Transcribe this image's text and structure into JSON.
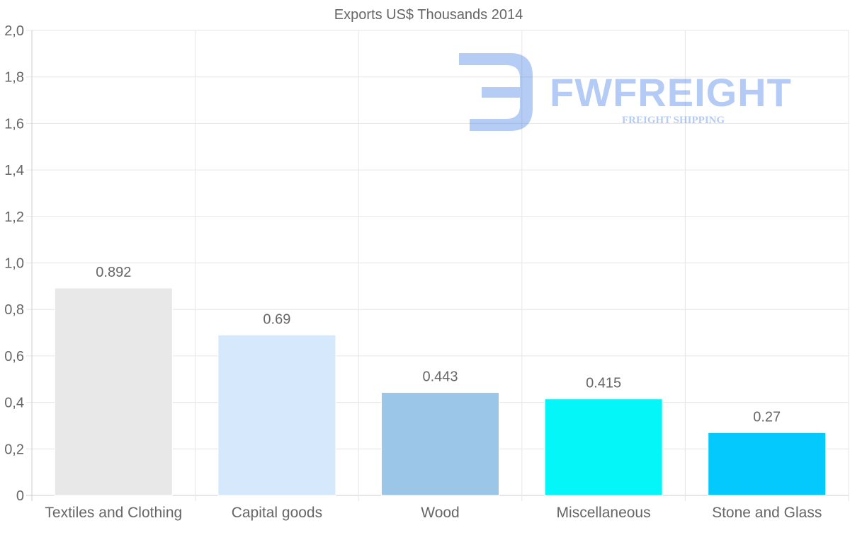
{
  "chart_data": {
    "type": "bar",
    "title": "Exports US$ Thousands 2014",
    "categories": [
      "Textiles and Clothing",
      "Capital goods",
      "Wood",
      "Miscellaneous",
      "Stone and Glass"
    ],
    "values": [
      0.892,
      0.69,
      0.443,
      0.415,
      0.27
    ],
    "value_labels": [
      "0.892",
      "0.69",
      "0.443",
      "0.415",
      "0.27"
    ],
    "colors": [
      "#e8e8e8",
      "#d6e8fb",
      "#9cc6e8",
      "#05f6f8",
      "#04c9fd"
    ],
    "ylim": [
      0,
      2.0
    ],
    "yticks": [
      0,
      0.2,
      0.4,
      0.6,
      0.8,
      1.0,
      1.2,
      1.4,
      1.6,
      1.8,
      2.0
    ],
    "ytick_labels": [
      "0",
      "0,2",
      "0,4",
      "0,6",
      "0,8",
      "1,0",
      "1,2",
      "1,4",
      "1,6",
      "1,8",
      "2,0"
    ],
    "xlabel": "",
    "ylabel": "",
    "grid": true
  },
  "watermark": {
    "brand": "FWFREIGHT",
    "tagline": "FREIGHT SHIPPING",
    "color": "#3c7ae6"
  }
}
